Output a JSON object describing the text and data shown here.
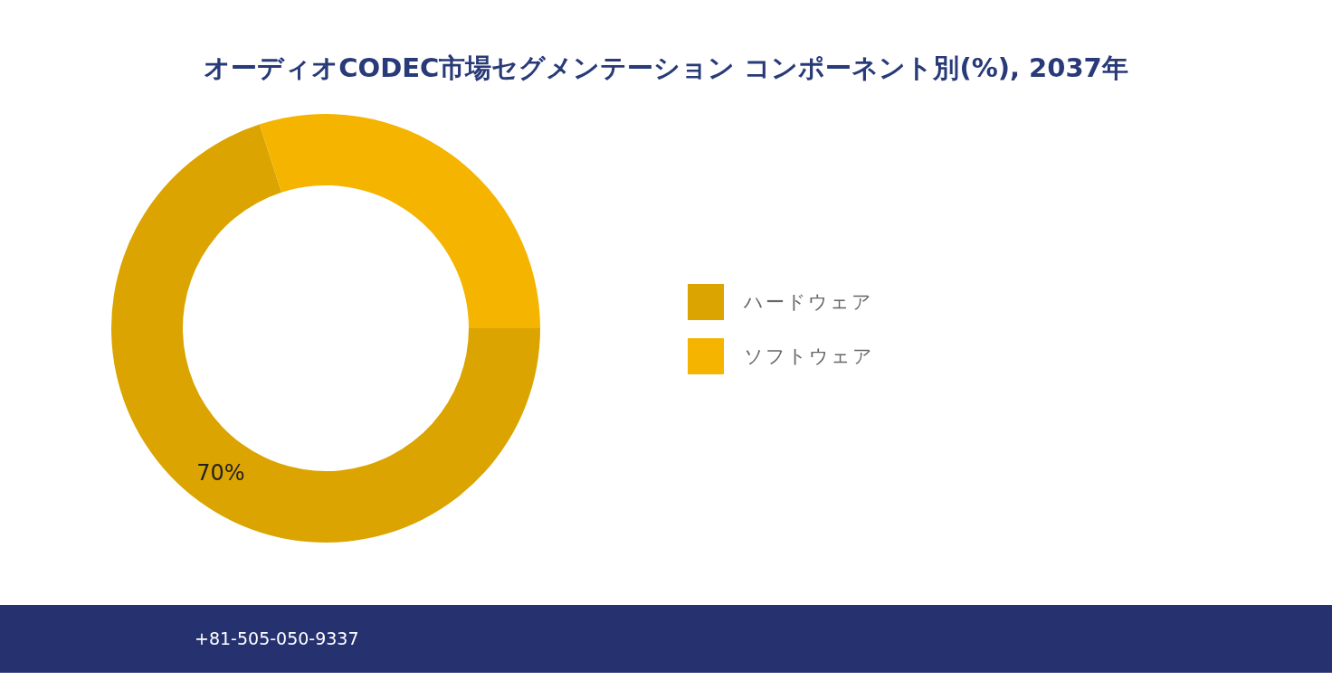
{
  "chart_data": {
    "type": "donut",
    "title": "オーディオCODEC市場セグメンテーション コンポーネント別(%), 2037年",
    "categories": [
      "ハードウェア",
      "ソフトウェア"
    ],
    "values": [
      70,
      30
    ],
    "colors": [
      "#dba400",
      "#f4b400"
    ],
    "value_labels": [
      "70%",
      null
    ],
    "legend": "right",
    "annotations": [
      "+81-505-050-9337"
    ]
  }
}
